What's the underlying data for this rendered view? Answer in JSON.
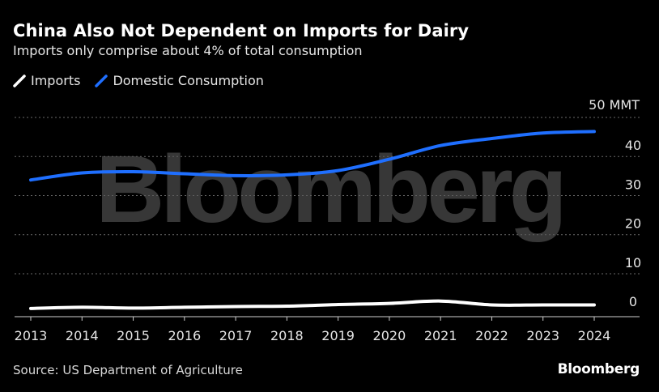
{
  "header": {
    "title": "China Also Not Dependent on Imports for Dairy",
    "subtitle": "Imports only comprise about 4% of total consumption"
  },
  "legend": [
    {
      "label": "Imports",
      "color": "#ffffff"
    },
    {
      "label": "Domestic Consumption",
      "color": "#1f6fff"
    }
  ],
  "footer": {
    "source": "Source: US Department of Agriculture",
    "brand": "Bloomberg"
  },
  "watermark": "Bloomberg",
  "chart_data": {
    "type": "line",
    "title": "China Also Not Dependent on Imports for Dairy",
    "subtitle": "Imports only comprise about 4% of total consumption",
    "xlabel": "",
    "ylabel": "",
    "unit_label": "50 MMT",
    "y_ticks": [
      {
        "value": 0,
        "label": "0"
      },
      {
        "value": 10,
        "label": "10"
      },
      {
        "value": 20,
        "label": "20"
      },
      {
        "value": 30,
        "label": "30"
      },
      {
        "value": 40,
        "label": "40"
      }
    ],
    "ylim": [
      -1,
      50
    ],
    "grid": true,
    "x": [
      "2013",
      "2014",
      "2015",
      "2016",
      "2017",
      "2018",
      "2019",
      "2020",
      "2021",
      "2022",
      "2023",
      "2024"
    ],
    "series": [
      {
        "name": "Domestic Consumption",
        "color": "#1f6fff",
        "values": [
          34.0,
          35.8,
          36.1,
          35.6,
          35.1,
          35.3,
          36.4,
          39.3,
          42.8,
          44.6,
          46.0,
          46.4
        ]
      },
      {
        "name": "Imports",
        "color": "#ffffff",
        "values": [
          1.1,
          1.4,
          1.2,
          1.4,
          1.6,
          1.7,
          2.1,
          2.4,
          3.0,
          2.0,
          2.0,
          2.0
        ]
      }
    ]
  }
}
